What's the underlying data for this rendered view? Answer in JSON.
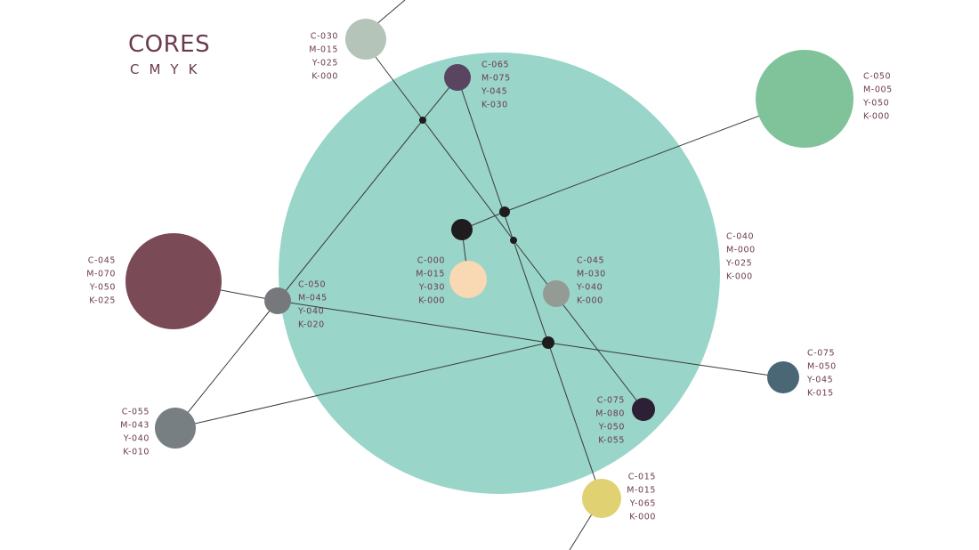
{
  "header": {
    "title": "CORES",
    "subtitle": "CMYK"
  },
  "nodes": [
    {
      "label": [
        "C-030",
        "M-015",
        "Y-025",
        "K-000"
      ]
    },
    {
      "label": [
        "C-065",
        "M-075",
        "Y-045",
        "K-030"
      ]
    },
    {
      "label": [
        "C-050",
        "M-005",
        "Y-050",
        "K-000"
      ]
    },
    {
      "label": [
        "C-040",
        "M-000",
        "Y-025",
        "K-000"
      ]
    },
    {
      "label": [
        "C-045",
        "M-070",
        "Y-050",
        "K-025"
      ]
    },
    {
      "label": [
        "C-050",
        "M-045",
        "Y-040",
        "K-020"
      ]
    },
    {
      "label": [
        "C-000",
        "M-015",
        "Y-030",
        "K-000"
      ]
    },
    {
      "label": [
        "C-045",
        "M-030",
        "Y-040",
        "K-000"
      ]
    },
    {
      "label": [
        "C-075",
        "M-050",
        "Y-045",
        "K-015"
      ]
    },
    {
      "label": [
        "C-055",
        "M-043",
        "Y-040",
        "K-010"
      ]
    },
    {
      "label": [
        "C-075",
        "M-080",
        "Y-050",
        "K-055"
      ]
    },
    {
      "label": [
        "C-015",
        "M-015",
        "Y-065",
        "K-000"
      ]
    }
  ]
}
